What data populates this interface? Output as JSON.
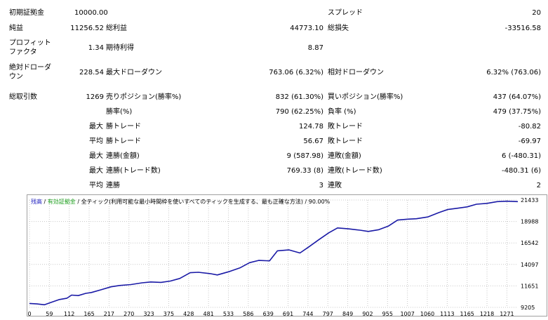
{
  "report": {
    "initial_deposit_label": "初期証拠金",
    "initial_deposit_value": "10000.00",
    "spread_label": "スプレッド",
    "spread_value": "20",
    "net_profit_label": "純益",
    "net_profit_value": "11256.52",
    "gross_profit_label": "総利益",
    "gross_profit_value": "44773.10",
    "gross_loss_label": "総損失",
    "gross_loss_value": "-33516.58",
    "profit_factor_label_line1": "プロフィット",
    "profit_factor_label_line2": "ファクタ",
    "profit_factor_value": "1.34",
    "expected_payoff_label": "期待利得",
    "expected_payoff_value": "8.87",
    "abs_drawdown_label_line1": "絶対ドローダ",
    "abs_drawdown_label_line2": "ウン",
    "abs_drawdown_value": "228.54",
    "max_drawdown_label": "最大ドローダウン",
    "max_drawdown_value": "763.06 (6.32%)",
    "rel_drawdown_label": "相対ドローダウン",
    "rel_drawdown_value": "6.32% (763.06)",
    "total_trades_label": "総取引数",
    "total_trades_value": "1269",
    "short_positions_label": "売りポジション(勝率%)",
    "short_positions_value": "832 (61.30%)",
    "long_positions_label": "買いポジション(勝率%)",
    "long_positions_value": "437 (64.07%)",
    "win_rate_label": "勝率(%)",
    "win_rate_value": "790 (62.25%)",
    "loss_rate_label": "負率 (%)",
    "loss_rate_value": "479 (37.75%)",
    "max_label": "最大",
    "largest_profit_label": "勝トレード",
    "largest_profit_value": "124.78",
    "largest_loss_label": "敗トレード",
    "largest_loss_value": "-80.82",
    "avg_label": "平均",
    "avg_profit_label": "勝トレード",
    "avg_profit_value": "56.67",
    "avg_loss_label": "敗トレード",
    "avg_loss_value": "-69.97",
    "max_label2": "最大",
    "max_consec_wins_money_label": "連勝(金額)",
    "max_consec_wins_money_value": "9 (587.98)",
    "max_consec_losses_money_label": "連敗(金額)",
    "max_consec_losses_money_value": "6 (-480.31)",
    "max_label3": "最大",
    "max_consec_wins_trades_label": "連勝(トレード数)",
    "max_consec_wins_trades_value": "769.33 (8)",
    "max_consec_losses_trades_label": "連敗(トレード数)",
    "max_consec_losses_trades_value": "-480.31 (6)",
    "avg_label2": "平均",
    "avg_consec_wins_label": "連勝",
    "avg_consec_wins_value": "3",
    "avg_consec_losses_label": "連敗",
    "avg_consec_losses_value": "2"
  },
  "legend": {
    "balance": "残高",
    "sep1": " / ",
    "equity": "有効証拠金",
    "sep2": " / ",
    "model": "全ティック(利用可能な最小時間枠を使いすべてのティックを生成する、最も正確な方法)",
    "sep3": " / ",
    "quality": "90.00%"
  },
  "colors": {
    "line": "#1a1aa6",
    "grid": "#c8c8c8",
    "border": "#a0a0a0"
  },
  "chart_data": {
    "type": "line",
    "x_ticks": [
      "0",
      "59",
      "112",
      "165",
      "217",
      "270",
      "323",
      "375",
      "428",
      "481",
      "533",
      "586",
      "639",
      "691",
      "744",
      "797",
      "849",
      "902",
      "955",
      "1007",
      "1060",
      "1113",
      "1165",
      "1218",
      "1271"
    ],
    "y_ticks": [
      "21433",
      "18988",
      "16542",
      "14097",
      "11651",
      "9205"
    ],
    "ylim": [
      9205,
      21433
    ],
    "xlim": [
      0,
      1300
    ],
    "series": [
      {
        "x": [
          0,
          20,
          40,
          59,
          80,
          100,
          112,
          130,
          150,
          165,
          190,
          217,
          240,
          270,
          300,
          323,
          350,
          375,
          400,
          428,
          450,
          481,
          500,
          533,
          560,
          586,
          610,
          639,
          660,
          691,
          720,
          744,
          770,
          797,
          820,
          849,
          880,
          902,
          930,
          955,
          980,
          1007,
          1030,
          1060,
          1090,
          1113,
          1140,
          1165,
          1190,
          1218,
          1245,
          1271,
          1300
        ],
        "y": [
          9650,
          9600,
          9500,
          9800,
          10100,
          10250,
          10600,
          10550,
          10800,
          10900,
          11200,
          11550,
          11700,
          11800,
          12000,
          12100,
          12050,
          12200,
          12500,
          13150,
          13200,
          13050,
          12900,
          13300,
          13700,
          14300,
          14550,
          14500,
          15650,
          15750,
          15400,
          16100,
          16900,
          17700,
          18250,
          18150,
          18000,
          17850,
          18050,
          18450,
          19150,
          19250,
          19300,
          19500,
          20000,
          20350,
          20500,
          20650,
          20950,
          21050,
          21250,
          21300,
          21250
        ]
      }
    ]
  }
}
